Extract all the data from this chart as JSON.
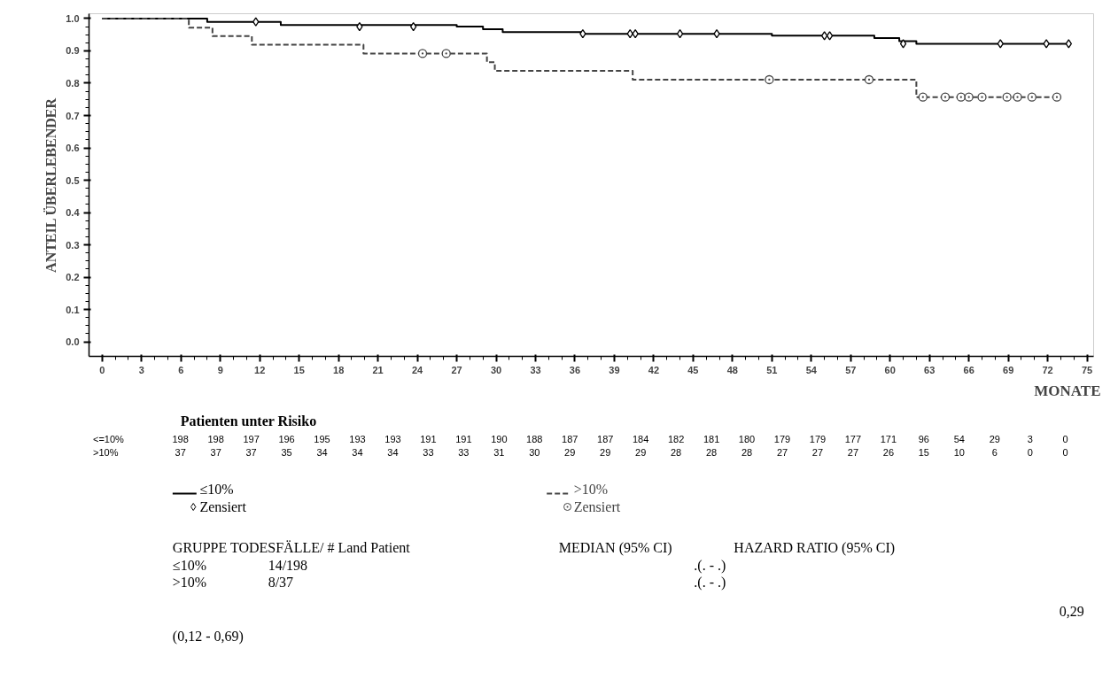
{
  "chart_data": {
    "type": "step",
    "ylabel": "ANTEIL ÜBERLEBENDER",
    "xlabel": "MONATE",
    "xlim": [
      -1,
      75.5
    ],
    "ylim": [
      -0.045,
      1.015
    ],
    "xticks": [
      0,
      3,
      6,
      9,
      12,
      15,
      18,
      21,
      24,
      27,
      30,
      33,
      36,
      39,
      42,
      45,
      48,
      51,
      54,
      57,
      60,
      63,
      66,
      69,
      72,
      75
    ],
    "yticks": [
      {
        "value": 0,
        "label": "0.0"
      },
      {
        "value": 0.1,
        "label": "0.1"
      },
      {
        "value": 0.2,
        "label": "0.2"
      },
      {
        "value": 0.3,
        "label": "0.3"
      },
      {
        "value": 0.4,
        "label": "0.4"
      },
      {
        "value": 0.5,
        "label": "0.5"
      },
      {
        "value": 0.6,
        "label": "0.6"
      },
      {
        "value": 0.7,
        "label": "0.7"
      },
      {
        "value": 0.8,
        "label": "0.8"
      },
      {
        "value": 0.9,
        "label": "0.9"
      },
      {
        "value": 1,
        "label": "1.0"
      }
    ],
    "grid": false,
    "legend": "bottom",
    "series": [
      {
        "name": "≤10%",
        "line_style": "solid",
        "color": "#000000",
        "x": [
          0,
          8,
          13.6,
          27,
          29,
          30.5,
          36.5,
          51,
          58.8,
          60.7,
          62,
          73.7
        ],
        "values": [
          1,
          0.99,
          0.98,
          0.975,
          0.967,
          0.958,
          0.953,
          0.947,
          0.94,
          0.93,
          0.922,
          0.922
        ]
      },
      {
        "name": ">10%",
        "line_style": "dashed",
        "color": "#444444",
        "x": [
          0,
          6.6,
          8.4,
          11.4,
          19.9,
          29.3,
          29.9,
          40.4,
          62,
          73
        ],
        "values": [
          1,
          0.972,
          0.946,
          0.919,
          0.892,
          0.865,
          0.838,
          0.811,
          0.757,
          0.757
        ]
      },
      {
        "name": "Zensiert",
        "type": "scatter",
        "marker": "diamond",
        "color": "#000000",
        "x": [
          11.7,
          19.6,
          23.7,
          36.6,
          40.2,
          40.6,
          44,
          46.8,
          55,
          55.4,
          61,
          68.4,
          71.9,
          73.6
        ],
        "values": [
          0.99,
          0.975,
          0.975,
          0.953,
          0.953,
          0.953,
          0.953,
          0.953,
          0.947,
          0.947,
          0.922,
          0.922,
          0.922,
          0.922
        ]
      },
      {
        "name": "Zensiert",
        "type": "scatter",
        "marker": "circle",
        "color": "#444444",
        "x": [
          24.4,
          26.2,
          50.8,
          58.4,
          62.5,
          64.2,
          65.4,
          66,
          67,
          68.9,
          69.7,
          70.8,
          72.7
        ],
        "values": [
          0.892,
          0.892,
          0.811,
          0.811,
          0.757,
          0.757,
          0.757,
          0.757,
          0.757,
          0.757,
          0.757,
          0.757,
          0.757
        ]
      }
    ],
    "annotations": [
      "Patienten unter Risiko",
      "<=10% 198 198 197 196 195 193 193 191 191 190 188 187 187 184 182 181 180 179 179 177 171 96 54 29 3 0",
      ">10% 37 37 37 35 34 34 34 33 33 31 30 29 29 29 28 28 28 27 27 27 26 15 10 6 0 0",
      "GRUPPE TODESFÄLLE/ # Land Patient",
      "MEDIAN (95% CI)",
      "HAZARD RATIO (95% CI)",
      "≤10%",
      "14/198",
      ".(. - .)",
      ">10%",
      "8/37",
      ".(. - .)",
      "0,29",
      "(0,12 - 0,69)"
    ]
  }
}
